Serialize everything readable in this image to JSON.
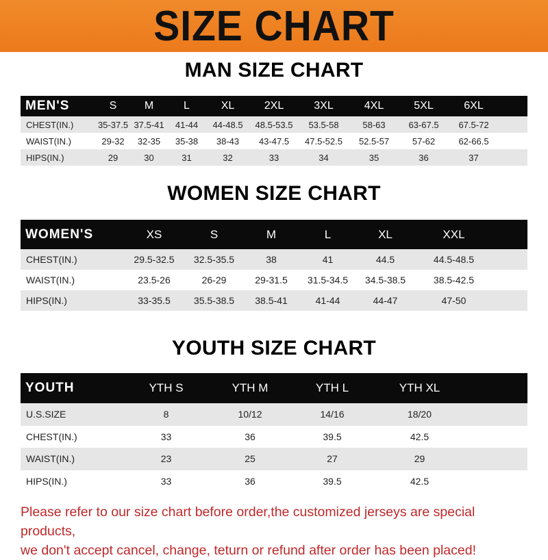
{
  "banner_title": "SIZE CHART",
  "men": {
    "title": "MAN SIZE CHART",
    "header": [
      "MEN'S",
      "S",
      "M",
      "L",
      "XL",
      "2XL",
      "3XL",
      "4XL",
      "5XL",
      "6XL"
    ],
    "rows": [
      [
        "CHEST(IN.)",
        "35-37.5",
        "37.5-41",
        "41-44",
        "44-48.5",
        "48.5-53.5",
        "53.5-58",
        "58-63",
        "63-67.5",
        "67.5-72"
      ],
      [
        "WAIST(IN.)",
        "29-32",
        "32-35",
        "35-38",
        "38-43",
        "43-47.5",
        "47.5-52.5",
        "52.5-57",
        "57-62",
        "62-66.5"
      ],
      [
        "HIPS(IN.)",
        "29",
        "30",
        "31",
        "32",
        "33",
        "34",
        "35",
        "36",
        "37"
      ]
    ]
  },
  "women": {
    "title": "WOMEN SIZE CHART",
    "header": [
      "WOMEN'S",
      "XS",
      "S",
      "M",
      "L",
      "XL",
      "XXL"
    ],
    "rows": [
      [
        "CHEST(IN.)",
        "29.5-32.5",
        "32.5-35.5",
        "38",
        "41",
        "44.5",
        "44.5-48.5"
      ],
      [
        "WAIST(IN.)",
        "23.5-26",
        "26-29",
        "29-31.5",
        "31.5-34.5",
        "34.5-38.5",
        "38.5-42.5"
      ],
      [
        "HIPS(IN.)",
        "33-35.5",
        "35.5-38.5",
        "38.5-41",
        "41-44",
        "44-47",
        "47-50"
      ]
    ]
  },
  "youth": {
    "title": "YOUTH SIZE CHART",
    "header": [
      "YOUTH",
      "YTH S",
      "YTH M",
      "YTH L",
      "YTH XL"
    ],
    "rows": [
      [
        "U.S.SIZE",
        "8",
        "10/12",
        "14/16",
        "18/20"
      ],
      [
        "CHEST(IN.)",
        "33",
        "36",
        "39.5",
        "42.5"
      ],
      [
        "WAIST(IN.)",
        "23",
        "25",
        "27",
        "29"
      ],
      [
        "HIPS(IN.)",
        "33",
        "36",
        "39.5",
        "42.5"
      ]
    ]
  },
  "note": {
    "line1": "Please refer to our size chart before order,the customized jerseys are special products,",
    "line2": "we don't accept cancel, change, teturn or refund after order has been placed!"
  },
  "colors": {
    "banner": "#ec7a1c",
    "header_row": "#0b0b0b",
    "stripe": "#e6e6e6",
    "note": "#c0282a"
  }
}
